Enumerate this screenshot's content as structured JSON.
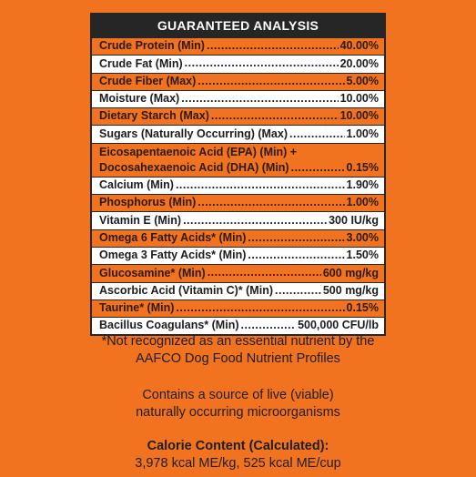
{
  "table": {
    "header": "GUARANTEED ANALYSIS",
    "rows": [
      {
        "label": "Crude Protein (Min)",
        "value": "40.00%",
        "shade": "orange"
      },
      {
        "label": "Crude Fat (Min)",
        "value": "20.00%",
        "shade": "white"
      },
      {
        "label": "Crude Fiber (Max)",
        "value": "5.00%",
        "shade": "orange"
      },
      {
        "label": "Moisture (Max)",
        "value": "10.00%",
        "shade": "white"
      },
      {
        "label": "Dietary Starch (Max)",
        "value": "10.00%",
        "shade": "orange"
      },
      {
        "label": "Sugars (Naturally Occurring) (Max)",
        "value": "1.00%",
        "shade": "white"
      },
      {
        "label_line1": "Eicosapentaenoic Acid (EPA) (Min) +",
        "label": "Docosahexaenoic Acid (DHA) (Min)",
        "value": "0.15%",
        "shade": "orange"
      },
      {
        "label": "Calcium (Min)",
        "value": "1.90%",
        "shade": "white"
      },
      {
        "label": "Phosphorus (Min)",
        "value": "1.00%",
        "shade": "orange"
      },
      {
        "label": "Vitamin E (Min)",
        "value": "300 IU/kg",
        "shade": "white"
      },
      {
        "label": "Omega 6 Fatty Acids* (Min)",
        "value": "3.00%",
        "shade": "orange"
      },
      {
        "label": "Omega 3 Fatty Acids* (Min)",
        "value": "1.50%",
        "shade": "white"
      },
      {
        "label": "Glucosamine* (Min)",
        "value": "600 mg/kg",
        "shade": "orange"
      },
      {
        "label": "Ascorbic Acid (Vitamin C)* (Min)",
        "value": "500 mg/kg",
        "shade": "white"
      },
      {
        "label": "Taurine* (Min)",
        "value": "0.15%",
        "shade": "orange"
      },
      {
        "label": "Bacillus Coagulans* (Min)",
        "value": "500,000 CFU/lb",
        "shade": "white"
      }
    ]
  },
  "footnote": {
    "line1": "*Not recognized as an essential nutrient by the",
    "line2": "AAFCO Dog Food Nutrient Profiles"
  },
  "live_note": {
    "line1": "Contains a source of live (viable)",
    "line2": "naturally occurring microorganisms"
  },
  "calorie": {
    "title": "Calorie Content (Calculated):",
    "value": "3,978 kcal ME/kg, 525 kcal ME/cup"
  },
  "colors": {
    "background": "#f1731f",
    "header": "#262626",
    "row_orange": "#f1731f",
    "row_white": "#ffffff"
  }
}
